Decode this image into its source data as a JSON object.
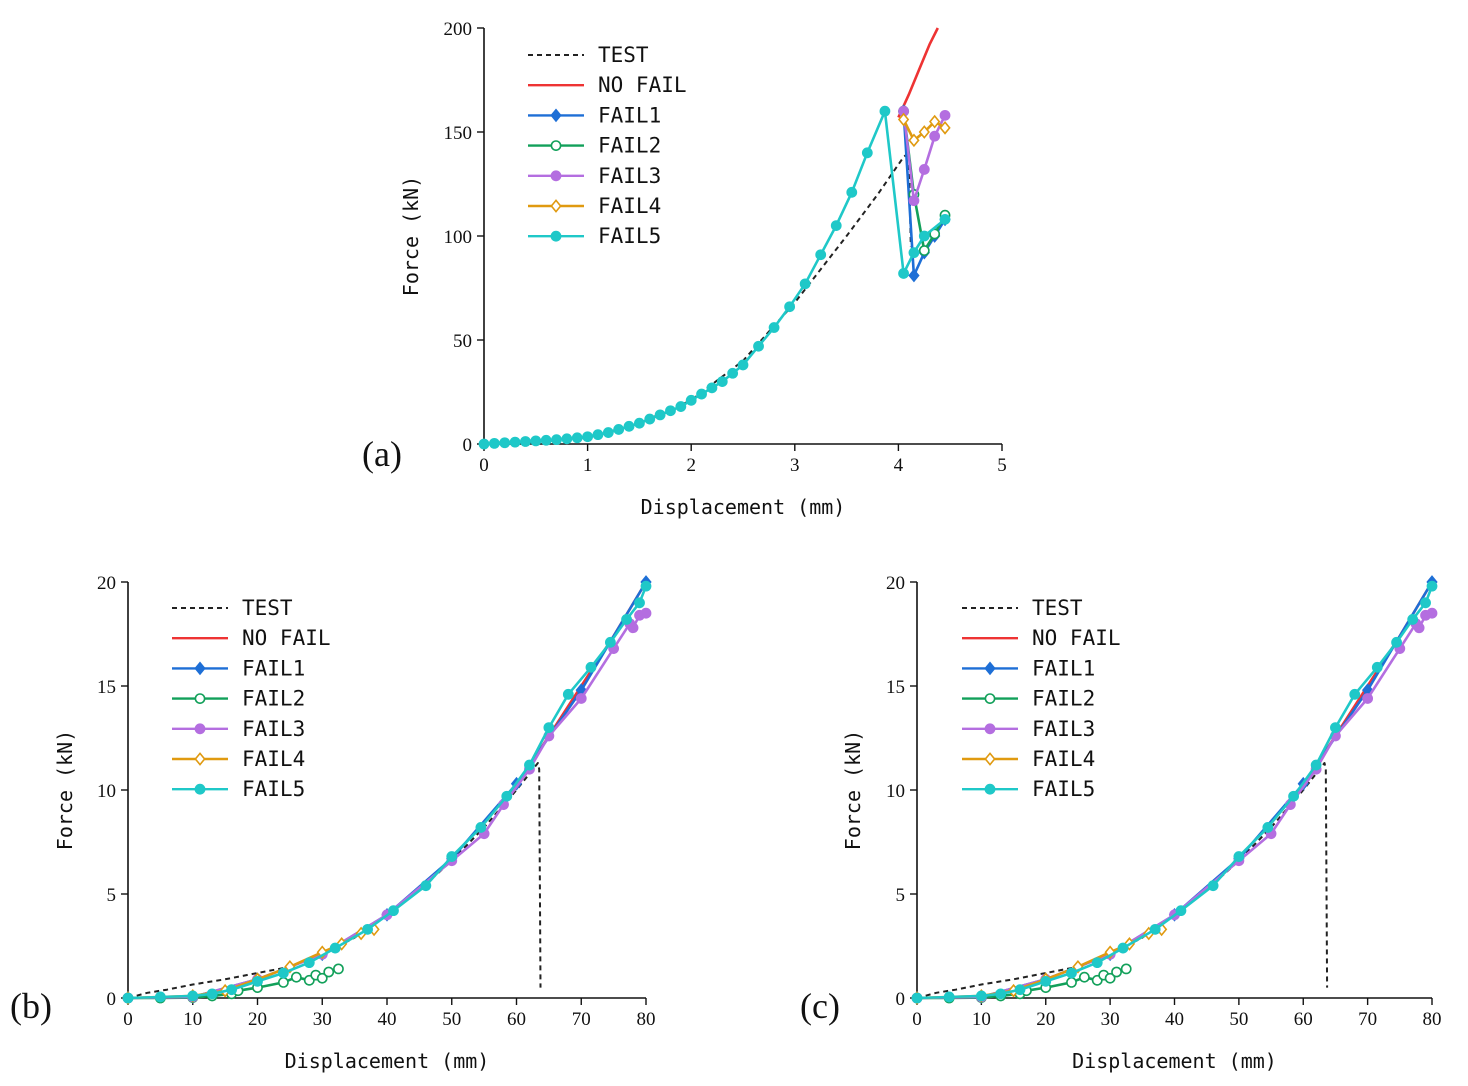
{
  "colors": {
    "TEST": "#222222",
    "NO FAIL": "#ee3333",
    "FAIL1": "#1e6fd6",
    "FAIL2": "#12a05a",
    "FAIL3": "#b46ee0",
    "FAIL4": "#e09a10",
    "FAIL5": "#1fc8c8"
  },
  "chart_data": [
    {
      "panel_label": "(a)",
      "type": "line",
      "xlabel": "Displacement (mm)",
      "ylabel": "Force (kN)",
      "xlim": [
        0,
        5
      ],
      "ylim": [
        0,
        200
      ],
      "xticks": [
        0,
        1,
        2,
        3,
        4,
        5
      ],
      "yticks": [
        0,
        50,
        100,
        150,
        200
      ],
      "legend_position": "top-left",
      "series": [
        {
          "name": "TEST",
          "marker": "none",
          "dashed": true,
          "x": [
            0,
            0.5,
            1.0,
            1.5,
            2.0,
            2.5,
            3.0,
            3.5,
            3.8,
            4.05,
            4.1,
            4.12
          ],
          "y": [
            0,
            1,
            3,
            10,
            21,
            40,
            68,
            100,
            120,
            138,
            140,
            95
          ]
        },
        {
          "name": "NO FAIL",
          "marker": "none",
          "x": [
            4.0,
            4.1,
            4.2,
            4.3,
            4.38
          ],
          "y": [
            157,
            168,
            180,
            192,
            200
          ]
        },
        {
          "name": "FAIL1",
          "marker": "filled-diamond",
          "x": [
            4.05,
            4.15,
            4.25,
            4.35,
            4.45
          ],
          "y": [
            160,
            81,
            92,
            100,
            108
          ]
        },
        {
          "name": "FAIL2",
          "marker": "open-circle",
          "x": [
            4.05,
            4.15,
            4.25,
            4.35,
            4.45
          ],
          "y": [
            160,
            120,
            93,
            101,
            110
          ]
        },
        {
          "name": "FAIL3",
          "marker": "filled-circle",
          "x": [
            4.05,
            4.15,
            4.25,
            4.35,
            4.45
          ],
          "y": [
            160,
            117,
            132,
            148,
            158
          ]
        },
        {
          "name": "FAIL4",
          "marker": "open-diamond",
          "x": [
            4.05,
            4.15,
            4.25,
            4.35,
            4.45
          ],
          "y": [
            156,
            146,
            150,
            155,
            152
          ]
        },
        {
          "name": "FAIL5",
          "marker": "filled-circle",
          "x": [
            0,
            0.1,
            0.2,
            0.3,
            0.4,
            0.5,
            0.6,
            0.7,
            0.8,
            0.9,
            1.0,
            1.1,
            1.2,
            1.3,
            1.4,
            1.5,
            1.6,
            1.7,
            1.8,
            1.9,
            2.0,
            2.1,
            2.2,
            2.3,
            2.4,
            2.5,
            2.65,
            2.8,
            2.95,
            3.1,
            3.25,
            3.4,
            3.55,
            3.7,
            3.87,
            4.05,
            4.15,
            4.25,
            4.45
          ],
          "y": [
            0,
            0.3,
            0.6,
            0.9,
            1.2,
            1.5,
            1.8,
            2.1,
            2.5,
            3,
            3.5,
            4.5,
            5.5,
            7,
            8.5,
            10,
            12,
            14,
            16,
            18,
            21,
            24,
            27,
            30,
            34,
            38,
            47,
            56,
            66,
            77,
            91,
            105,
            121,
            140,
            160,
            82,
            92,
            100,
            108
          ]
        }
      ]
    },
    {
      "panel_label": "(b)",
      "type": "line",
      "xlabel": "Displacement (mm)",
      "ylabel": "Force (kN)",
      "xlim": [
        0,
        80
      ],
      "ylim": [
        0,
        20
      ],
      "xticks": [
        0,
        10,
        20,
        30,
        40,
        50,
        60,
        70,
        80
      ],
      "yticks": [
        0,
        5,
        10,
        15,
        20
      ],
      "legend_position": "top-left",
      "series": [
        {
          "name": "TEST",
          "marker": "none",
          "dashed": true,
          "x": [
            0,
            3,
            6,
            10,
            15,
            20,
            25,
            30,
            35,
            40,
            45,
            50,
            55,
            60,
            63.3,
            63.5,
            63.7
          ],
          "y": [
            0,
            0.25,
            0.4,
            0.65,
            0.9,
            1.2,
            1.5,
            2.1,
            2.9,
            4.0,
            5.2,
            6.6,
            8.2,
            10.0,
            11.3,
            11.0,
            0.5
          ]
        },
        {
          "name": "NO FAIL",
          "marker": "none",
          "x": [
            60,
            65,
            70,
            75,
            80
          ],
          "y": [
            10.2,
            12.6,
            15.0,
            17.4,
            20.0
          ]
        },
        {
          "name": "FAIL1",
          "marker": "filled-diamond",
          "x": [
            0,
            10,
            20,
            30,
            40,
            50,
            60,
            70,
            80
          ],
          "y": [
            0,
            0.05,
            0.9,
            2.1,
            4.0,
            6.7,
            10.3,
            14.8,
            20.0
          ]
        },
        {
          "name": "FAIL2",
          "marker": "open-circle",
          "x": [
            0,
            5,
            10,
            13,
            16,
            17,
            20,
            24,
            26,
            28,
            29,
            30,
            31,
            32.5
          ],
          "y": [
            0,
            0,
            0.02,
            0.1,
            0.2,
            0.35,
            0.5,
            0.75,
            1.0,
            0.85,
            1.1,
            0.95,
            1.25,
            1.4
          ]
        },
        {
          "name": "FAIL3",
          "marker": "filled-circle",
          "x": [
            0,
            10,
            20,
            30,
            40,
            50,
            55,
            58,
            62,
            65,
            70,
            75,
            77.5,
            78,
            79,
            80
          ],
          "y": [
            0,
            0.05,
            0.9,
            2.1,
            4.0,
            6.6,
            7.9,
            9.3,
            11.0,
            12.6,
            14.4,
            16.8,
            18.0,
            17.8,
            18.4,
            18.5
          ]
        },
        {
          "name": "FAIL4",
          "marker": "open-diamond",
          "x": [
            0,
            10,
            15,
            20,
            25,
            30,
            33,
            36,
            38
          ],
          "y": [
            0,
            0.1,
            0.35,
            0.9,
            1.5,
            2.2,
            2.6,
            3.1,
            3.3
          ]
        },
        {
          "name": "FAIL5",
          "marker": "filled-circle",
          "x": [
            0,
            5,
            10,
            13,
            16,
            20,
            24,
            28,
            32,
            37,
            41,
            46,
            50,
            54.5,
            58.5,
            62,
            65,
            68,
            71.5,
            74.5,
            77,
            79,
            80
          ],
          "y": [
            0,
            0.05,
            0.1,
            0.2,
            0.4,
            0.8,
            1.2,
            1.7,
            2.4,
            3.3,
            4.2,
            5.4,
            6.8,
            8.2,
            9.7,
            11.2,
            13.0,
            14.6,
            15.9,
            17.1,
            18.2,
            19.0,
            19.8
          ]
        }
      ]
    },
    {
      "panel_label": "(c)",
      "type": "line",
      "xlabel": "Displacement (mm)",
      "ylabel": "Force (kN)",
      "xlim": [
        0,
        80
      ],
      "ylim": [
        0,
        20
      ],
      "xticks": [
        0,
        10,
        20,
        30,
        40,
        50,
        60,
        70,
        80
      ],
      "yticks": [
        0,
        5,
        10,
        15,
        20
      ],
      "legend_position": "top-left",
      "series": [
        {
          "name": "TEST",
          "marker": "none",
          "dashed": true,
          "x": [
            0,
            3,
            6,
            10,
            15,
            20,
            25,
            30,
            35,
            40,
            45,
            50,
            55,
            60,
            63.3,
            63.5,
            63.7
          ],
          "y": [
            0,
            0.25,
            0.4,
            0.65,
            0.9,
            1.2,
            1.5,
            2.1,
            2.9,
            4.0,
            5.2,
            6.6,
            8.2,
            10.0,
            11.3,
            11.0,
            0.5
          ]
        },
        {
          "name": "NO FAIL",
          "marker": "none",
          "x": [
            60,
            65,
            70,
            75,
            80
          ],
          "y": [
            10.2,
            12.6,
            15.0,
            17.4,
            20.0
          ]
        },
        {
          "name": "FAIL1",
          "marker": "filled-diamond",
          "x": [
            0,
            10,
            20,
            30,
            40,
            50,
            60,
            70,
            80
          ],
          "y": [
            0,
            0.05,
            0.9,
            2.1,
            4.0,
            6.7,
            10.3,
            14.8,
            20.0
          ]
        },
        {
          "name": "FAIL2",
          "marker": "open-circle",
          "x": [
            0,
            5,
            10,
            13,
            16,
            17,
            20,
            24,
            26,
            28,
            29,
            30,
            31,
            32.5
          ],
          "y": [
            0,
            0,
            0.02,
            0.1,
            0.2,
            0.35,
            0.5,
            0.75,
            1.0,
            0.85,
            1.1,
            0.95,
            1.25,
            1.4
          ]
        },
        {
          "name": "FAIL3",
          "marker": "filled-circle",
          "x": [
            0,
            10,
            20,
            30,
            40,
            50,
            55,
            58,
            62,
            65,
            70,
            75,
            77.5,
            78,
            79,
            80
          ],
          "y": [
            0,
            0.05,
            0.9,
            2.1,
            4.0,
            6.6,
            7.9,
            9.3,
            11.0,
            12.6,
            14.4,
            16.8,
            18.0,
            17.8,
            18.4,
            18.5
          ]
        },
        {
          "name": "FAIL4",
          "marker": "open-diamond",
          "x": [
            0,
            10,
            15,
            20,
            25,
            30,
            33,
            36,
            38
          ],
          "y": [
            0,
            0.1,
            0.35,
            0.9,
            1.5,
            2.2,
            2.6,
            3.1,
            3.3
          ]
        },
        {
          "name": "FAIL5",
          "marker": "filled-circle",
          "x": [
            0,
            5,
            10,
            13,
            16,
            20,
            24,
            28,
            32,
            37,
            41,
            46,
            50,
            54.5,
            58.5,
            62,
            65,
            68,
            71.5,
            74.5,
            77,
            79,
            80
          ],
          "y": [
            0,
            0.05,
            0.1,
            0.2,
            0.4,
            0.8,
            1.2,
            1.7,
            2.4,
            3.3,
            4.2,
            5.4,
            6.8,
            8.2,
            9.7,
            11.2,
            13.0,
            14.6,
            15.9,
            17.1,
            18.2,
            19.0,
            19.8
          ]
        }
      ]
    }
  ]
}
